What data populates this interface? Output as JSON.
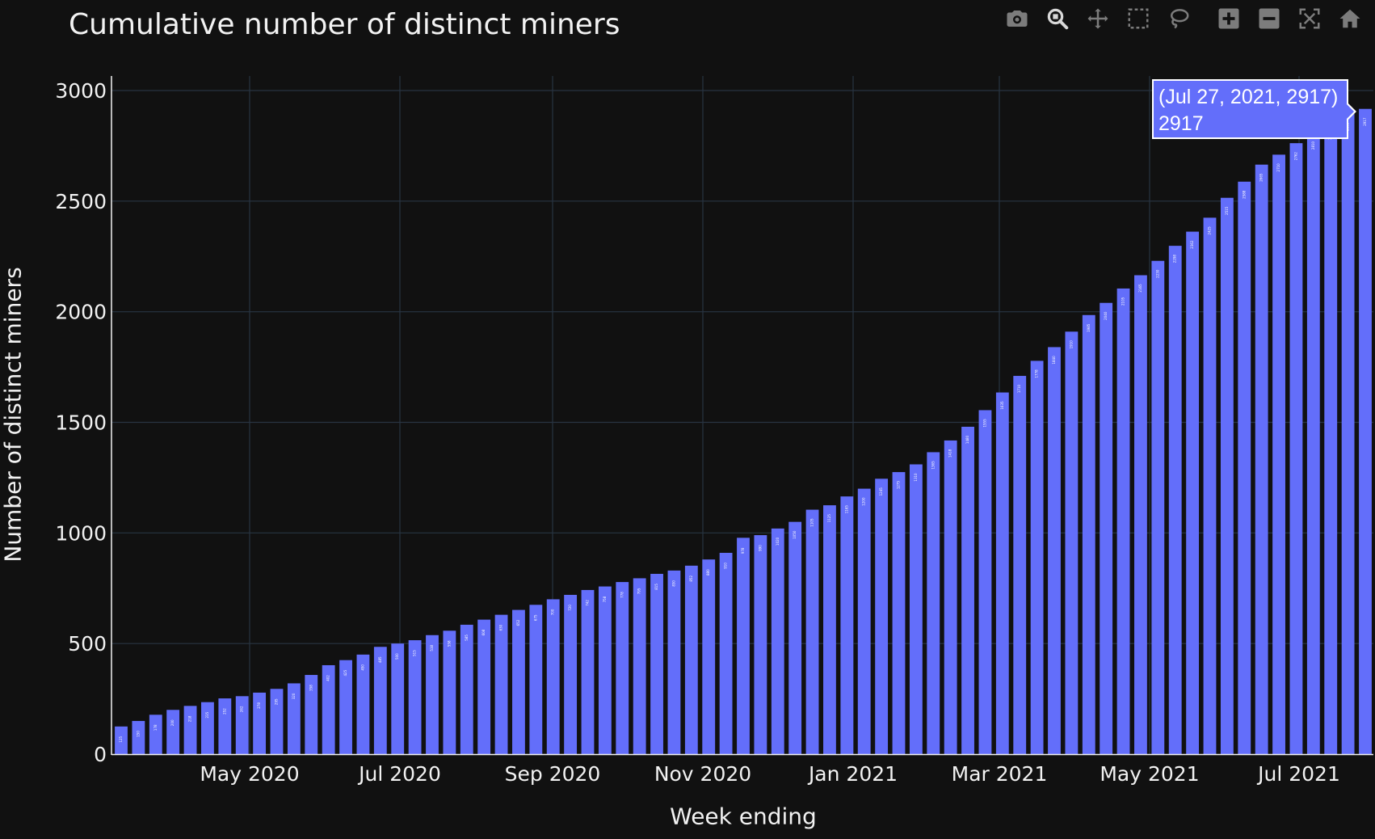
{
  "chart_data": {
    "type": "bar",
    "title": "Cumulative number of distinct miners",
    "xlabel": "Week ending",
    "ylabel": "Number of distinct miners",
    "x_tick_labels": [
      "May 2020",
      "Jul 2020",
      "Sep 2020",
      "Nov 2020",
      "Jan 2021",
      "Mar 2021",
      "May 2021",
      "Jul 2021"
    ],
    "y_tick_labels": [
      "0",
      "500",
      "1000",
      "1500",
      "2000",
      "2500",
      "3000"
    ],
    "ylim": [
      0,
      3050
    ],
    "grid": true,
    "bar_color": "#636efa",
    "values": [
      125,
      150,
      178,
      200,
      218,
      235,
      252,
      262,
      278,
      295,
      320,
      358,
      402,
      425,
      450,
      485,
      500,
      515,
      538,
      558,
      585,
      608,
      630,
      652,
      675,
      700,
      720,
      742,
      758,
      778,
      795,
      815,
      830,
      852,
      880,
      910,
      978,
      990,
      1020,
      1050,
      1105,
      1125,
      1165,
      1200,
      1245,
      1275,
      1310,
      1365,
      1418,
      1480,
      1555,
      1635,
      1710,
      1778,
      1840,
      1910,
      1985,
      2040,
      2105,
      2165,
      2230,
      2298,
      2362,
      2425,
      2515,
      2588,
      2665,
      2710,
      2762,
      2810,
      2855,
      2895,
      2917
    ]
  },
  "tooltip": {
    "line1": "(Jul 27, 2021, 2917)",
    "line2": "2917"
  },
  "modebar": {
    "icons": [
      "camera-icon",
      "zoom-icon",
      "pan-icon",
      "box-select-icon",
      "lasso-icon",
      "zoom-in-icon",
      "zoom-out-icon",
      "autoscale-icon",
      "home-icon"
    ]
  },
  "colors": {
    "background": "#111111",
    "grid": "#283442",
    "bar": "#636efa",
    "text": "#f2f2f2"
  }
}
